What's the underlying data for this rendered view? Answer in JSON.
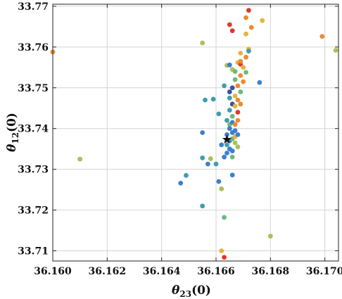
{
  "chart_data": {
    "type": "scatter",
    "title": "",
    "xlabel": {
      "symbol": "θ",
      "sub": "23",
      "unit": "(0)"
    },
    "ylabel": {
      "symbol": "θ",
      "sub": "12",
      "unit": "(0)"
    },
    "xlim": [
      36.16,
      36.1705
    ],
    "ylim": [
      33.7075,
      33.7705
    ],
    "xticks": [
      {
        "value": 36.16,
        "label": "36.160"
      },
      {
        "value": 36.162,
        "label": "36.162"
      },
      {
        "value": 36.164,
        "label": "36.164"
      },
      {
        "value": 36.166,
        "label": "36.166"
      },
      {
        "value": 36.168,
        "label": "36.168"
      },
      {
        "value": 36.17,
        "label": "36.170"
      }
    ],
    "yticks": [
      {
        "value": 33.71,
        "label": "33.71"
      },
      {
        "value": 33.72,
        "label": "33.72"
      },
      {
        "value": 33.73,
        "label": "33.73"
      },
      {
        "value": 33.74,
        "label": "33.74"
      },
      {
        "value": 33.75,
        "label": "33.75"
      },
      {
        "value": 33.76,
        "label": "33.76"
      },
      {
        "value": 33.77,
        "label": "33.77"
      }
    ],
    "grid": true,
    "marker_colors": {
      "dark_blue": "#3a4ea8",
      "blue": "#3b7fd0",
      "teal": "#3f9dae",
      "green": "#6cba78",
      "yellow_green": "#a9c157",
      "yellow": "#e3b53f",
      "orange": "#ec8a33",
      "red": "#dd3a2a"
    },
    "points": [
      {
        "x": 36.16,
        "y": 33.7588,
        "c": "orange"
      },
      {
        "x": 36.161,
        "y": 33.7325,
        "c": "yellow_green"
      },
      {
        "x": 36.1647,
        "y": 33.7266,
        "c": "blue"
      },
      {
        "x": 36.1649,
        "y": 33.7285,
        "c": "teal"
      },
      {
        "x": 36.1655,
        "y": 33.761,
        "c": "yellow_green"
      },
      {
        "x": 36.1655,
        "y": 33.721,
        "c": "teal"
      },
      {
        "x": 36.1655,
        "y": 33.739,
        "c": "blue"
      },
      {
        "x": 36.1655,
        "y": 33.7328,
        "c": "teal"
      },
      {
        "x": 36.1656,
        "y": 33.747,
        "c": "teal"
      },
      {
        "x": 36.1657,
        "y": 33.7313,
        "c": "blue"
      },
      {
        "x": 36.1658,
        "y": 33.7326,
        "c": "yellow_green"
      },
      {
        "x": 36.1659,
        "y": 33.7472,
        "c": "teal"
      },
      {
        "x": 36.166,
        "y": 33.7313,
        "c": "teal"
      },
      {
        "x": 36.1661,
        "y": 33.7436,
        "c": "teal"
      },
      {
        "x": 36.1661,
        "y": 33.727,
        "c": "blue"
      },
      {
        "x": 36.1662,
        "y": 33.7252,
        "c": "yellow_green"
      },
      {
        "x": 36.1662,
        "y": 33.736,
        "c": "blue"
      },
      {
        "x": 36.1662,
        "y": 33.71,
        "c": "yellow"
      },
      {
        "x": 36.1663,
        "y": 33.7505,
        "c": "teal"
      },
      {
        "x": 36.1663,
        "y": 33.733,
        "c": "blue"
      },
      {
        "x": 36.1663,
        "y": 33.7182,
        "c": "green"
      },
      {
        "x": 36.1663,
        "y": 33.7084,
        "c": "red"
      },
      {
        "x": 36.1664,
        "y": 33.7555,
        "c": "yellow_green"
      },
      {
        "x": 36.1664,
        "y": 33.7385,
        "c": "blue"
      },
      {
        "x": 36.1664,
        "y": 33.736,
        "c": "teal"
      },
      {
        "x": 36.1664,
        "y": 33.734,
        "c": "blue"
      },
      {
        "x": 36.1664,
        "y": 33.742,
        "c": "teal"
      },
      {
        "x": 36.1665,
        "y": 33.749,
        "c": "dark_blue"
      },
      {
        "x": 36.1665,
        "y": 33.7475,
        "c": "teal"
      },
      {
        "x": 36.1665,
        "y": 33.741,
        "c": "green"
      },
      {
        "x": 36.1665,
        "y": 33.737,
        "c": "blue"
      },
      {
        "x": 36.1665,
        "y": 33.735,
        "c": "blue"
      },
      {
        "x": 36.1665,
        "y": 33.74,
        "c": "blue"
      },
      {
        "x": 36.1665,
        "y": 33.7445,
        "c": "teal"
      },
      {
        "x": 36.1665,
        "y": 33.7556,
        "c": "blue"
      },
      {
        "x": 36.1666,
        "y": 33.75,
        "c": "dark_blue"
      },
      {
        "x": 36.1666,
        "y": 33.746,
        "c": "dark_blue"
      },
      {
        "x": 36.1666,
        "y": 33.743,
        "c": "green"
      },
      {
        "x": 36.1666,
        "y": 33.739,
        "c": "blue"
      },
      {
        "x": 36.1666,
        "y": 33.7345,
        "c": "blue"
      },
      {
        "x": 36.1666,
        "y": 33.733,
        "c": "green"
      },
      {
        "x": 36.1666,
        "y": 33.7286,
        "c": "blue"
      },
      {
        "x": 36.1666,
        "y": 33.7545,
        "c": "yellow_green"
      },
      {
        "x": 36.1666,
        "y": 33.7415,
        "c": "blue"
      },
      {
        "x": 36.1666,
        "y": 33.7375,
        "c": "green"
      },
      {
        "x": 36.1667,
        "y": 33.748,
        "c": "yellow"
      },
      {
        "x": 36.1667,
        "y": 33.7455,
        "c": "yellow"
      },
      {
        "x": 36.1667,
        "y": 33.741,
        "c": "orange"
      },
      {
        "x": 36.1667,
        "y": 33.738,
        "c": "yellow"
      },
      {
        "x": 36.1667,
        "y": 33.752,
        "c": "green"
      },
      {
        "x": 36.1667,
        "y": 33.754,
        "c": "green"
      },
      {
        "x": 36.1667,
        "y": 33.7395,
        "c": "blue"
      },
      {
        "x": 36.1667,
        "y": 33.7365,
        "c": "yellow_green"
      },
      {
        "x": 36.1668,
        "y": 33.7505,
        "c": "orange"
      },
      {
        "x": 36.1668,
        "y": 33.747,
        "c": "orange"
      },
      {
        "x": 36.1668,
        "y": 33.744,
        "c": "red"
      },
      {
        "x": 36.1668,
        "y": 33.742,
        "c": "orange"
      },
      {
        "x": 36.1668,
        "y": 33.7562,
        "c": "yellow"
      },
      {
        "x": 36.1668,
        "y": 33.7385,
        "c": "blue"
      },
      {
        "x": 36.1668,
        "y": 33.7355,
        "c": "yellow_green"
      },
      {
        "x": 36.1669,
        "y": 33.753,
        "c": "orange"
      },
      {
        "x": 36.1669,
        "y": 33.749,
        "c": "green"
      },
      {
        "x": 36.1669,
        "y": 33.746,
        "c": "orange"
      },
      {
        "x": 36.1669,
        "y": 33.7558,
        "c": "red"
      },
      {
        "x": 36.1669,
        "y": 33.7565,
        "c": "orange"
      },
      {
        "x": 36.167,
        "y": 33.755,
        "c": "yellow"
      },
      {
        "x": 36.167,
        "y": 33.7515,
        "c": "orange"
      },
      {
        "x": 36.1671,
        "y": 33.7538,
        "c": "green"
      },
      {
        "x": 36.1671,
        "y": 33.7575,
        "c": "orange"
      },
      {
        "x": 36.1672,
        "y": 33.7595,
        "c": "yellow"
      },
      {
        "x": 36.1672,
        "y": 33.759,
        "c": "teal"
      },
      {
        "x": 36.1671,
        "y": 33.7672,
        "c": "orange"
      },
      {
        "x": 36.1672,
        "y": 33.769,
        "c": "red"
      },
      {
        "x": 36.1673,
        "y": 33.7648,
        "c": "orange"
      },
      {
        "x": 36.1665,
        "y": 33.7655,
        "c": "red"
      },
      {
        "x": 36.1666,
        "y": 33.764,
        "c": "red"
      },
      {
        "x": 36.1669,
        "y": 33.7585,
        "c": "yellow"
      },
      {
        "x": 36.1671,
        "y": 33.7632,
        "c": "yellow"
      },
      {
        "x": 36.1677,
        "y": 33.7665,
        "c": "yellow"
      },
      {
        "x": 36.1676,
        "y": 33.7513,
        "c": "blue"
      },
      {
        "x": 36.1699,
        "y": 33.7626,
        "c": "orange"
      },
      {
        "x": 36.1704,
        "y": 33.7592,
        "c": "yellow_green"
      },
      {
        "x": 36.168,
        "y": 33.7136,
        "c": "yellow_green"
      }
    ],
    "best_fit": {
      "x": 36.1664,
      "y": 33.7373,
      "marker": "star",
      "color": "#111111"
    }
  }
}
